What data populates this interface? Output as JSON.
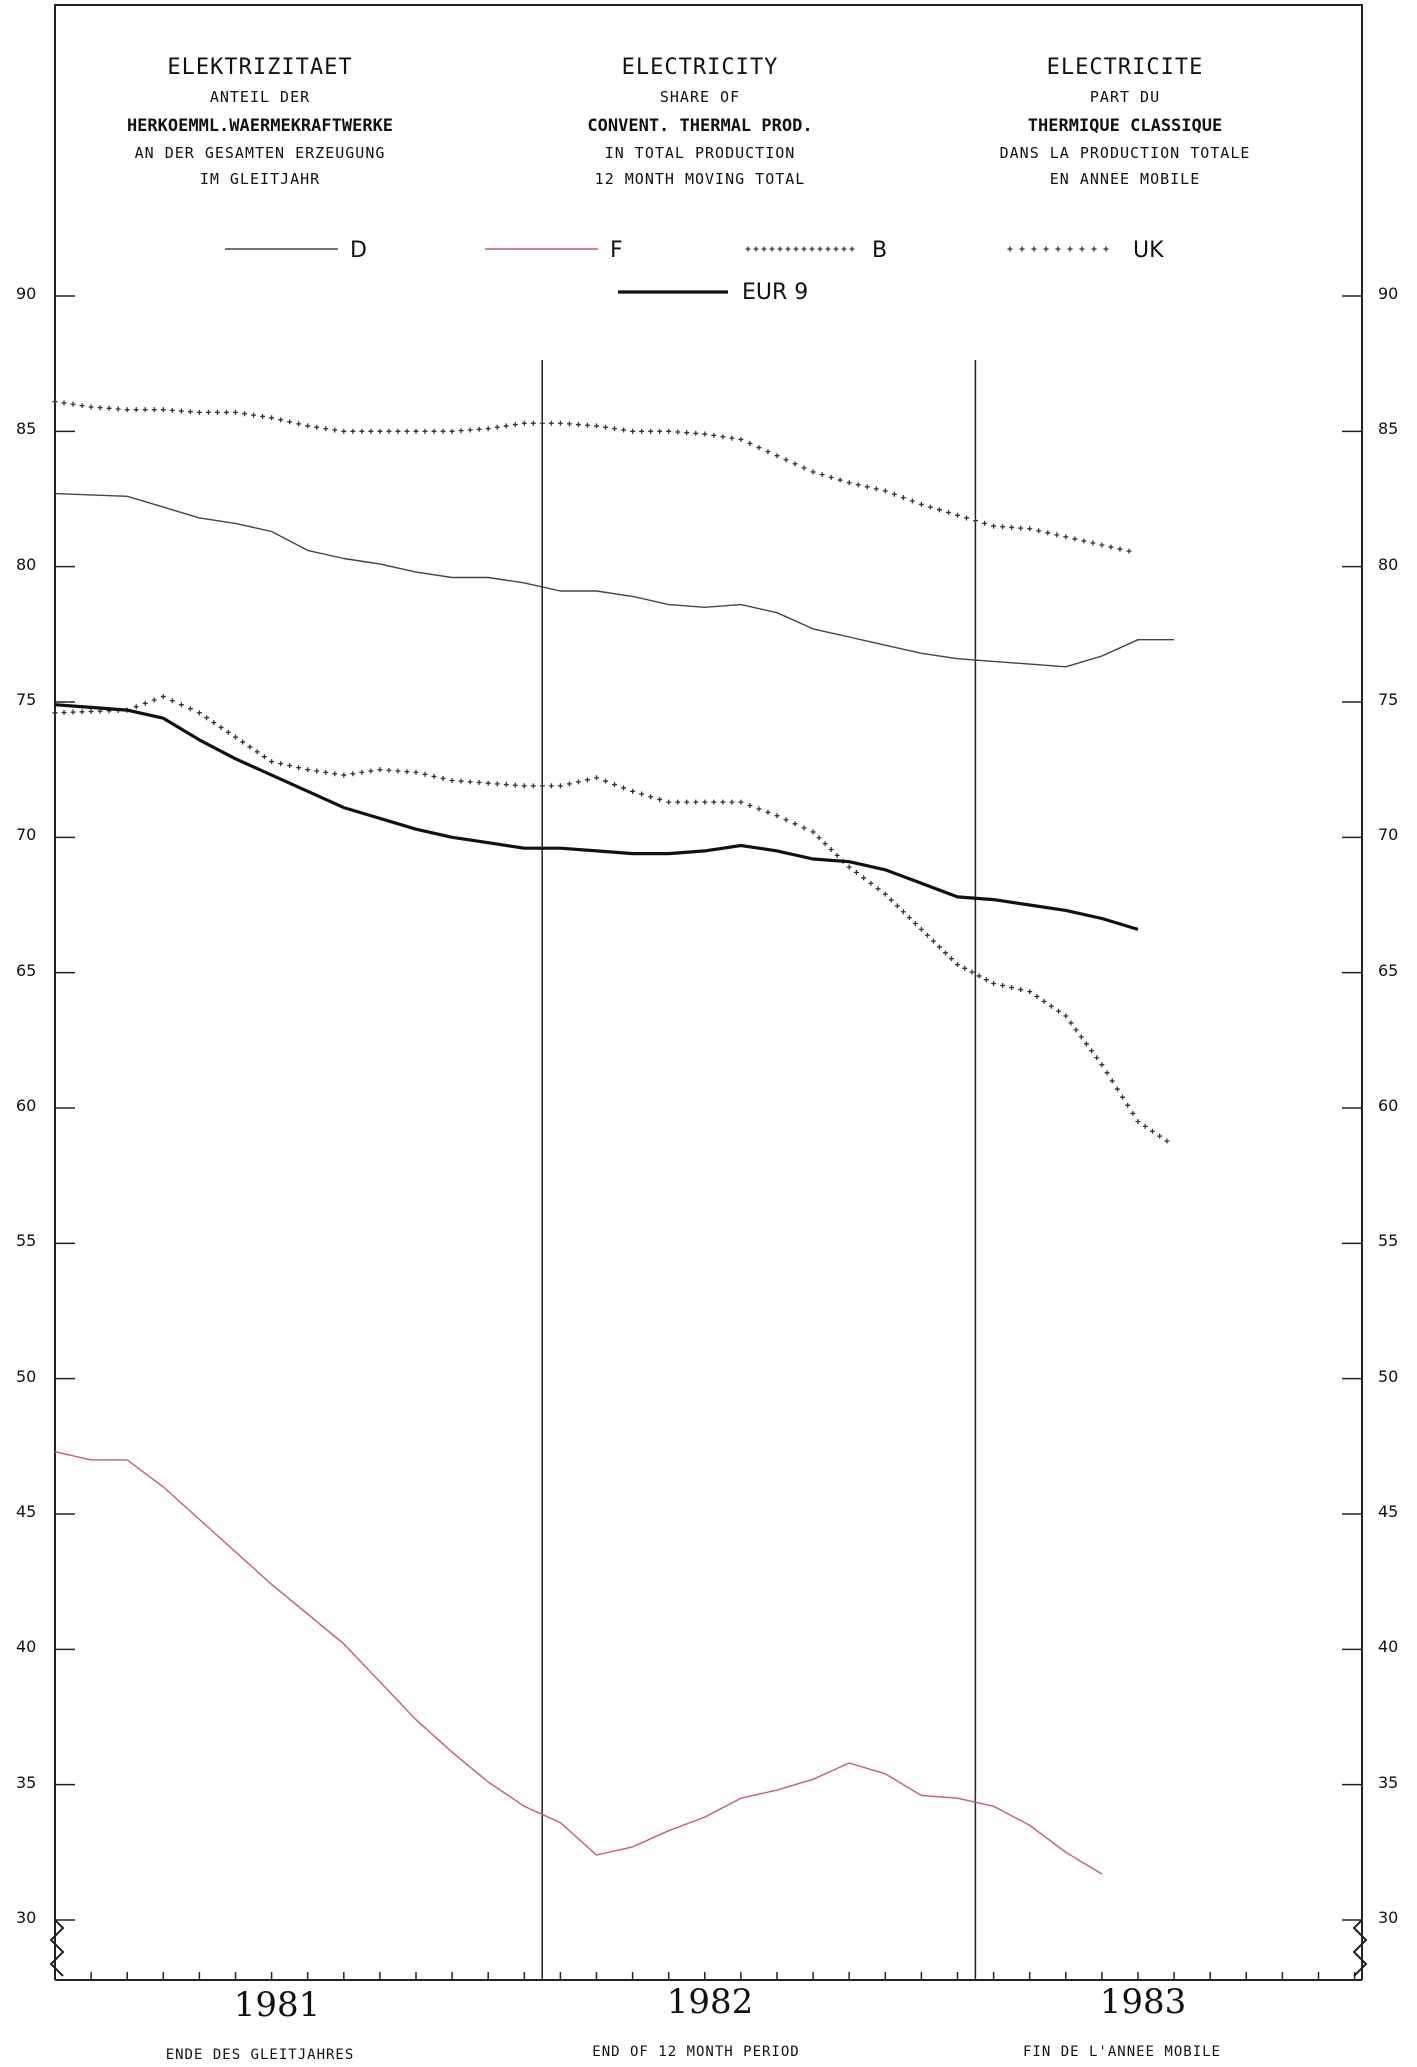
{
  "header": {
    "de": {
      "t1": "ELEKTRIZITAET",
      "t2": "ANTEIL DER",
      "t3": "HERKOEMML.WAERMEKRAFTWERKE",
      "t4": "AN DER GESAMTEN ERZEUGUNG",
      "t5": "IM GLEITJAHR"
    },
    "en": {
      "t1": "ELECTRICITY",
      "t2": "SHARE OF",
      "t3": "CONVENT. THERMAL PROD.",
      "t4": "IN TOTAL PRODUCTION",
      "t5": "12 MONTH MOVING TOTAL"
    },
    "fr": {
      "t1": "ELECTRICITE",
      "t2": "PART DU",
      "t3": "THERMIQUE CLASSIQUE",
      "t4": "DANS LA PRODUCTION TOTALE",
      "t5": "EN ANNEE MOBILE"
    }
  },
  "footer": {
    "de": "ENDE DES GLEITJAHRES",
    "en": "END OF 12 MONTH PERIOD",
    "fr": "FIN DE L'ANNEE MOBILE"
  },
  "colors": {
    "D": "#444444",
    "F": "#d05a68",
    "B": "#333333",
    "UK": "#333333",
    "EUR 9": "#111111"
  },
  "chart_data": {
    "type": "line",
    "ylim": [
      30,
      90
    ],
    "yticks": [
      30,
      35,
      40,
      45,
      50,
      55,
      60,
      65,
      70,
      75,
      80,
      85,
      90
    ],
    "year_labels": [
      "1981",
      "1982",
      "1983"
    ],
    "x_months": [
      0,
      36
    ],
    "series": [
      {
        "name": "D",
        "style": "thin",
        "points": [
          [
            0,
            82.7
          ],
          [
            2,
            82.6
          ],
          [
            3,
            82.2
          ],
          [
            4,
            81.8
          ],
          [
            5,
            81.6
          ],
          [
            6,
            81.3
          ],
          [
            7,
            80.6
          ],
          [
            8,
            80.3
          ],
          [
            9,
            80.1
          ],
          [
            10,
            79.8
          ],
          [
            11,
            79.6
          ],
          [
            12,
            79.6
          ],
          [
            13,
            79.4
          ],
          [
            14,
            79.1
          ],
          [
            15,
            79.1
          ],
          [
            16,
            78.9
          ],
          [
            17,
            78.6
          ],
          [
            18,
            78.5
          ],
          [
            19,
            78.6
          ],
          [
            20,
            78.3
          ],
          [
            21,
            77.7
          ],
          [
            22,
            77.4
          ],
          [
            23,
            77.1
          ],
          [
            24,
            76.8
          ],
          [
            25,
            76.6
          ],
          [
            26,
            76.5
          ],
          [
            27,
            76.4
          ],
          [
            28,
            76.3
          ],
          [
            29,
            76.7
          ],
          [
            30,
            77.3
          ],
          [
            31,
            77.3
          ]
        ]
      },
      {
        "name": "F",
        "style": "thin",
        "points": [
          [
            0,
            47.3
          ],
          [
            1,
            47.0
          ],
          [
            2,
            47.0
          ],
          [
            3,
            46.0
          ],
          [
            4,
            44.8
          ],
          [
            5,
            43.6
          ],
          [
            6,
            42.4
          ],
          [
            7,
            41.3
          ],
          [
            8,
            40.2
          ],
          [
            9,
            38.8
          ],
          [
            10,
            37.4
          ],
          [
            11,
            36.2
          ],
          [
            12,
            35.1
          ],
          [
            13,
            34.2
          ],
          [
            14,
            33.6
          ],
          [
            15,
            32.4
          ],
          [
            16,
            32.7
          ],
          [
            17,
            33.3
          ],
          [
            18,
            33.8
          ],
          [
            19,
            34.5
          ],
          [
            20,
            34.8
          ],
          [
            21,
            35.2
          ],
          [
            22,
            35.8
          ],
          [
            23,
            35.4
          ],
          [
            24,
            34.6
          ],
          [
            25,
            34.5
          ],
          [
            26,
            34.2
          ],
          [
            27,
            33.5
          ],
          [
            28,
            32.5
          ],
          [
            29,
            31.7
          ]
        ]
      },
      {
        "name": "B",
        "style": "crosses",
        "points": [
          [
            0,
            86.1
          ],
          [
            1,
            85.9
          ],
          [
            2,
            85.8
          ],
          [
            3,
            85.8
          ],
          [
            4,
            85.7
          ],
          [
            5,
            85.7
          ],
          [
            6,
            85.5
          ],
          [
            7,
            85.2
          ],
          [
            8,
            85.0
          ],
          [
            9,
            85.0
          ],
          [
            10,
            85.0
          ],
          [
            11,
            85.0
          ],
          [
            12,
            85.1
          ],
          [
            13,
            85.3
          ],
          [
            14,
            85.3
          ],
          [
            15,
            85.2
          ],
          [
            16,
            85.0
          ],
          [
            17,
            85.0
          ],
          [
            18,
            84.9
          ],
          [
            19,
            84.7
          ],
          [
            20,
            84.1
          ],
          [
            21,
            83.5
          ],
          [
            22,
            83.1
          ],
          [
            23,
            82.8
          ],
          [
            24,
            82.3
          ],
          [
            25,
            81.9
          ],
          [
            26,
            81.5
          ],
          [
            27,
            81.4
          ],
          [
            28,
            81.1
          ],
          [
            29,
            80.8
          ],
          [
            30,
            80.5
          ]
        ]
      },
      {
        "name": "UK",
        "style": "crosses",
        "points": [
          [
            0,
            74.6
          ],
          [
            2,
            74.7
          ],
          [
            3,
            75.2
          ],
          [
            4,
            74.6
          ],
          [
            5,
            73.7
          ],
          [
            6,
            72.8
          ],
          [
            7,
            72.5
          ],
          [
            8,
            72.3
          ],
          [
            9,
            72.5
          ],
          [
            10,
            72.4
          ],
          [
            11,
            72.1
          ],
          [
            12,
            72.0
          ],
          [
            13,
            71.9
          ],
          [
            14,
            71.9
          ],
          [
            15,
            72.2
          ],
          [
            16,
            71.7
          ],
          [
            17,
            71.3
          ],
          [
            18,
            71.3
          ],
          [
            19,
            71.3
          ],
          [
            20,
            70.8
          ],
          [
            21,
            70.2
          ],
          [
            22,
            68.9
          ],
          [
            23,
            67.9
          ],
          [
            24,
            66.6
          ],
          [
            25,
            65.3
          ],
          [
            26,
            64.6
          ],
          [
            27,
            64.3
          ],
          [
            28,
            63.4
          ],
          [
            29,
            61.6
          ],
          [
            30,
            59.5
          ],
          [
            31,
            58.6
          ]
        ]
      },
      {
        "name": "EUR 9",
        "style": "thick",
        "points": [
          [
            0,
            74.9
          ],
          [
            1,
            74.8
          ],
          [
            2,
            74.7
          ],
          [
            3,
            74.4
          ],
          [
            4,
            73.6
          ],
          [
            5,
            72.9
          ],
          [
            6,
            72.3
          ],
          [
            7,
            71.7
          ],
          [
            8,
            71.1
          ],
          [
            9,
            70.7
          ],
          [
            10,
            70.3
          ],
          [
            11,
            70.0
          ],
          [
            12,
            69.8
          ],
          [
            13,
            69.6
          ],
          [
            14,
            69.6
          ],
          [
            15,
            69.5
          ],
          [
            16,
            69.4
          ],
          [
            17,
            69.4
          ],
          [
            18,
            69.5
          ],
          [
            19,
            69.7
          ],
          [
            20,
            69.5
          ],
          [
            21,
            69.2
          ],
          [
            22,
            69.1
          ],
          [
            23,
            68.8
          ],
          [
            24,
            68.3
          ],
          [
            25,
            67.8
          ],
          [
            26,
            67.7
          ],
          [
            27,
            67.5
          ],
          [
            28,
            67.3
          ],
          [
            29,
            67.0
          ],
          [
            30,
            66.6
          ]
        ]
      }
    ]
  }
}
